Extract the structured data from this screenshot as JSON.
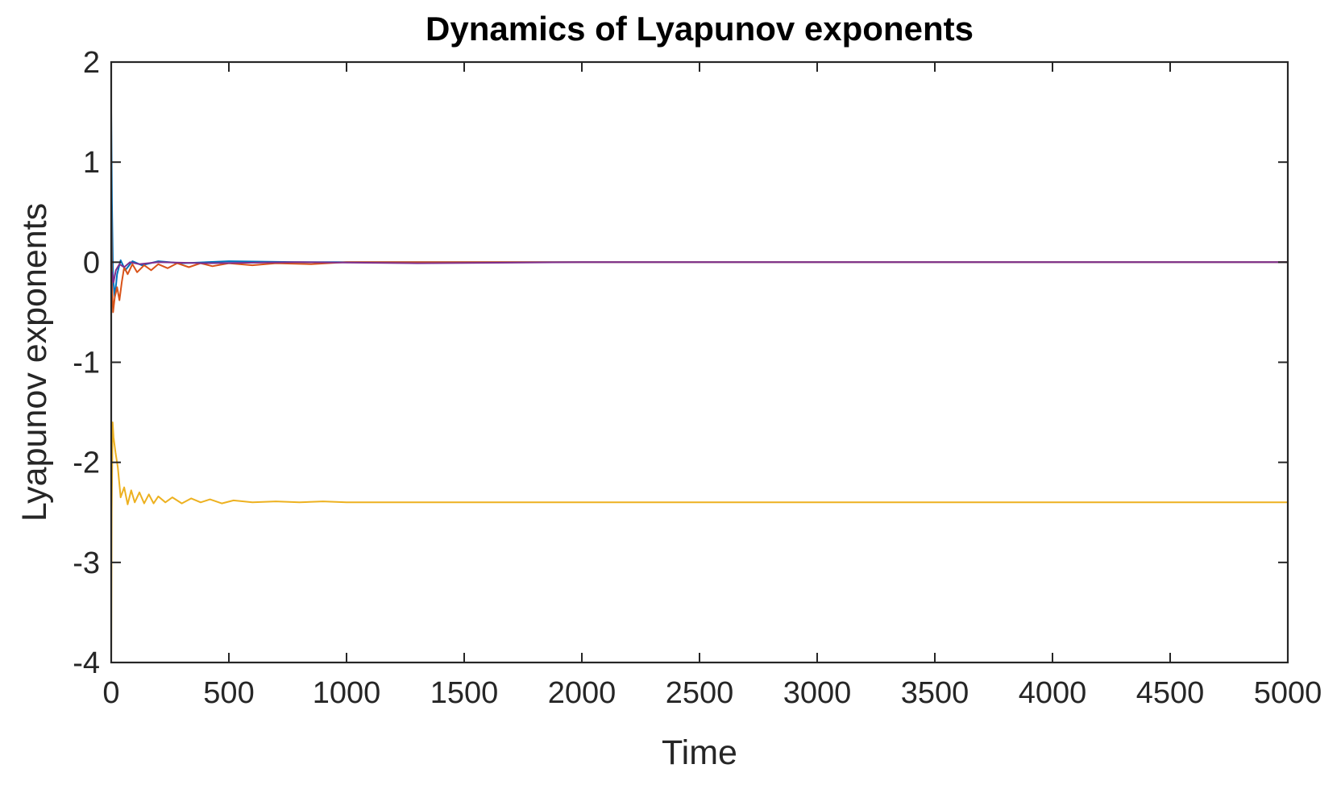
{
  "chart_data": {
    "type": "line",
    "title": "Dynamics of Lyapunov exponents",
    "xlabel": "Time",
    "ylabel": "Lyapunov exponents",
    "xlim": [
      0,
      5000
    ],
    "ylim": [
      -4,
      2
    ],
    "xticks": [
      "0",
      "500",
      "1000",
      "1500",
      "2000",
      "2500",
      "3000",
      "3500",
      "4000",
      "4500",
      "5000"
    ],
    "yticks": [
      "2",
      "1",
      "0",
      "-1",
      "-2",
      "-3",
      "-4"
    ],
    "grid": false,
    "legend": "none",
    "series": [
      {
        "color": "#0072BD",
        "x": [
          0,
          3,
          8,
          15,
          25,
          40,
          60,
          90,
          130,
          200,
          300,
          500,
          800,
          1200,
          2000,
          3000,
          4000,
          5000
        ],
        "y": [
          1.5,
          0.6,
          -0.15,
          -0.35,
          -0.12,
          0.02,
          -0.08,
          0.01,
          -0.03,
          0.01,
          -0.01,
          0.01,
          0.0,
          0.0,
          0.0,
          0.0,
          0.0,
          0.0
        ]
      },
      {
        "color": "#D95319",
        "x": [
          0,
          3,
          8,
          15,
          25,
          35,
          45,
          55,
          70,
          90,
          110,
          140,
          170,
          200,
          240,
          280,
          330,
          380,
          430,
          500,
          600,
          700,
          850,
          1000,
          1500,
          2000,
          3000,
          4000,
          5000
        ],
        "y": [
          0.6,
          -0.2,
          -0.5,
          -0.35,
          -0.25,
          -0.38,
          -0.2,
          -0.05,
          -0.12,
          -0.02,
          -0.1,
          -0.03,
          -0.08,
          -0.02,
          -0.06,
          -0.01,
          -0.05,
          -0.01,
          -0.04,
          -0.01,
          -0.03,
          -0.01,
          -0.02,
          0.0,
          0.0,
          0.0,
          0.0,
          0.0,
          0.0
        ]
      },
      {
        "color": "#EDB120",
        "x": [
          0,
          2,
          6,
          10,
          18,
          28,
          40,
          55,
          70,
          85,
          100,
          120,
          140,
          160,
          180,
          200,
          230,
          260,
          300,
          340,
          380,
          420,
          470,
          520,
          600,
          700,
          800,
          900,
          1000,
          1300,
          1600,
          2000,
          2500,
          3000,
          3500,
          4000,
          4500,
          5000
        ],
        "y": [
          -4.0,
          -2.5,
          -1.6,
          -1.75,
          -1.9,
          -2.05,
          -2.35,
          -2.25,
          -2.42,
          -2.28,
          -2.4,
          -2.3,
          -2.41,
          -2.32,
          -2.41,
          -2.34,
          -2.4,
          -2.35,
          -2.41,
          -2.36,
          -2.4,
          -2.37,
          -2.41,
          -2.38,
          -2.4,
          -2.39,
          -2.4,
          -2.39,
          -2.4,
          -2.4,
          -2.4,
          -2.4,
          -2.4,
          -2.4,
          -2.4,
          -2.4,
          -2.4,
          -2.4
        ]
      },
      {
        "color": "#7E2F8E",
        "x": [
          0,
          4,
          10,
          20,
          35,
          55,
          80,
          120,
          200,
          400,
          800,
          1300,
          2000,
          3000,
          4000,
          5000
        ],
        "y": [
          -0.3,
          -0.1,
          -0.2,
          -0.08,
          -0.02,
          -0.05,
          0.0,
          -0.02,
          0.0,
          -0.01,
          0.0,
          -0.01,
          0.0,
          0.0,
          0.0,
          0.0
        ]
      }
    ]
  }
}
